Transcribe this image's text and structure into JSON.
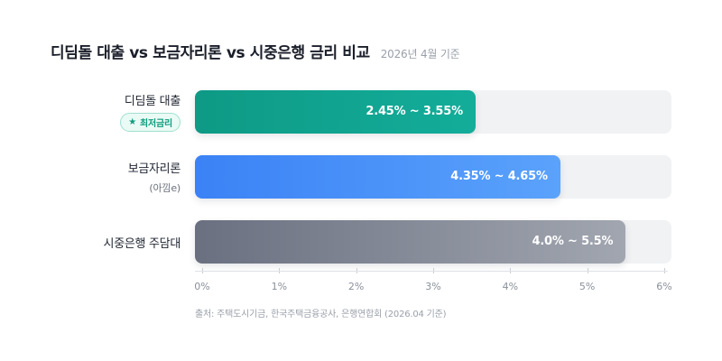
{
  "header": {
    "title": "디딤돌 대출 vs 보금자리론 vs 시중은행 금리 비교",
    "subtitle": "2026년 4월 기준"
  },
  "rows": [
    {
      "label": "디딤돌 대출",
      "badge": "최저금리",
      "badge_icon": "star-icon"
    },
    {
      "label": "보금자리론",
      "sub": "(아낌e)"
    },
    {
      "label": "시중은행 주담대"
    }
  ],
  "source": "출처: 주택도시기금, 한국주택금융공사, 은행연합회 (2026.04 기준)",
  "colors": {
    "didimdol": [
      "#0e9a85",
      "#13ad9a"
    ],
    "bogeumjari": [
      "#3b82f6",
      "#5aa2fb"
    ],
    "bank": [
      "#6a7080",
      "#a1a6b0"
    ],
    "track": "#f1f2f4"
  },
  "chart_data": {
    "type": "bar",
    "orientation": "horizontal",
    "categories": [
      "디딤돌 대출",
      "보금자리론",
      "시중은행 주담대"
    ],
    "ranges": [
      [
        2.45,
        3.55
      ],
      [
        4.35,
        4.65
      ],
      [
        4.0,
        5.5
      ]
    ],
    "value_labels": [
      "2.45% ~ 3.55%",
      "4.35% ~ 4.65%",
      "4.0% ~ 5.5%"
    ],
    "xlim": [
      0,
      6
    ],
    "x_ticks": [
      "0%",
      "1%",
      "2%",
      "3%",
      "4%",
      "5%",
      "6%"
    ],
    "grid": false
  }
}
